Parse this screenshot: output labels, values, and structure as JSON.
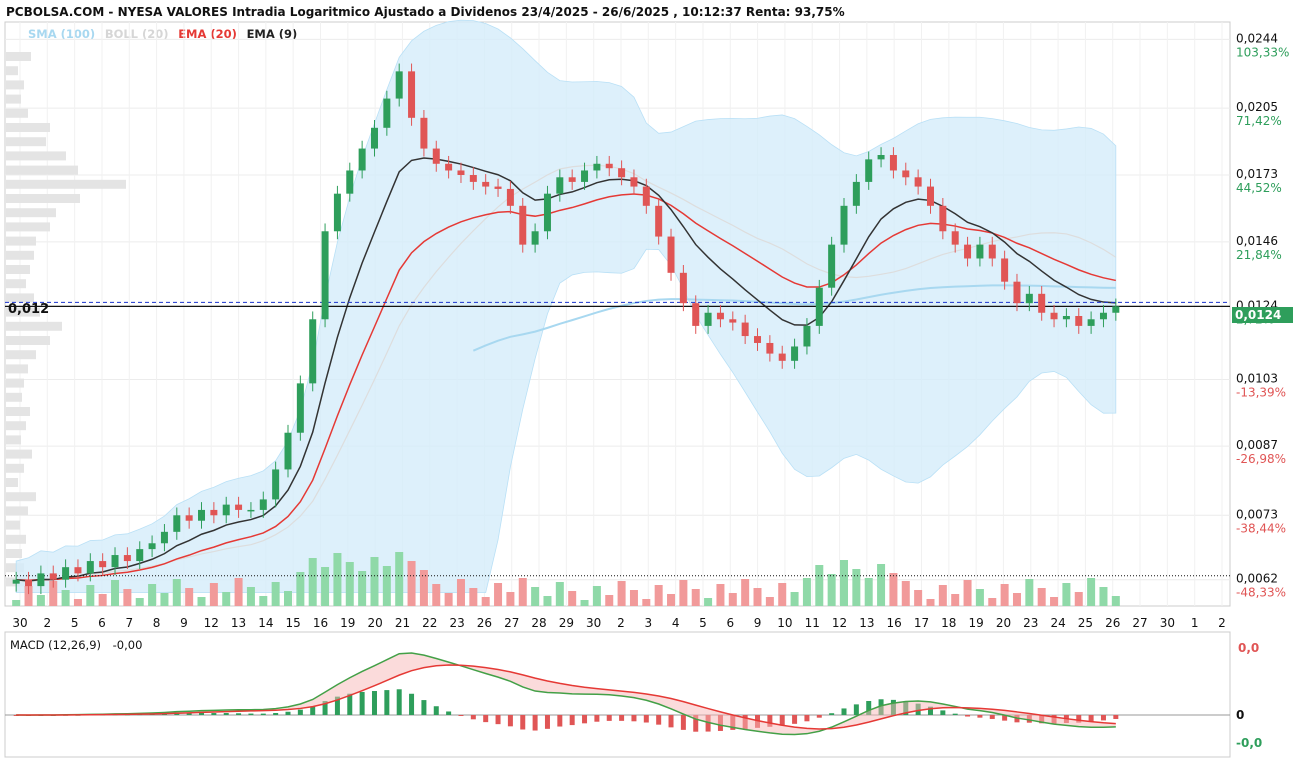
{
  "header": {
    "title": "PCBOLSA.COM - NYESA VALORES Intradia Logaritmico Ajustado a Dividenos 23/4/2025 - 26/6/2025 , 10:12:37 Renta: 93,75%"
  },
  "legend": [
    {
      "label": "SMA (100)",
      "color": "#a8d8f0"
    },
    {
      "label": "BOLL (20)",
      "color": "#d6d6d6"
    },
    {
      "label": "EMA (20)",
      "color": "#e53935"
    },
    {
      "label": "EMA (9)",
      "color": "#222222"
    }
  ],
  "macd": {
    "label": "MACD (12,26,9)",
    "value": "-0,00",
    "axis_labels": [
      "0,0",
      "0",
      "-0,0"
    ]
  },
  "last_price_label": "0,0124",
  "crosshair_label": "0,012",
  "colors": {
    "up": "#2e9e5b",
    "down": "#e05555",
    "boll_fill": "#d4ecfa",
    "sma": "#a8d8f0",
    "ema20": "#e53935",
    "ema9": "#333333"
  },
  "chart_data": {
    "type": "candlestick",
    "title": "PCBOLSA.COM - NYESA VALORES Intradia Logaritmico Ajustado a Dividenos 23/4/2025 - 26/6/2025 , 10:12:37 Renta: 93,75%",
    "y_scale": "log",
    "ylim": [
      0.0058,
      0.0255
    ],
    "y_ticks": [
      {
        "price": "0,0244",
        "pct": "103,33%"
      },
      {
        "price": "0,0205",
        "pct": "71,42%"
      },
      {
        "price": "0,0173",
        "pct": "44,52%"
      },
      {
        "price": "0,0146",
        "pct": "21,84%"
      },
      {
        "price": "0,0124",
        "pct": "2,72%"
      },
      {
        "price": "0,0103",
        "pct": "-13,39%"
      },
      {
        "price": "0,0087",
        "pct": "-26,98%"
      },
      {
        "price": "0,0073",
        "pct": "-38,44%"
      },
      {
        "price": "0,0062",
        "pct": "-48,33%"
      }
    ],
    "x_labels": [
      "30",
      "2",
      "5",
      "6",
      "7",
      "8",
      "9",
      "12",
      "13",
      "14",
      "15",
      "16",
      "19",
      "20",
      "21",
      "22",
      "23",
      "26",
      "27",
      "28",
      "29",
      "30",
      "2",
      "3",
      "4",
      "5",
      "6",
      "9",
      "10",
      "11",
      "12",
      "13",
      "16",
      "17",
      "18",
      "19",
      "20",
      "23",
      "24",
      "25",
      "26",
      "27",
      "30",
      "1",
      "2"
    ],
    "close_series": [
      0.0062,
      0.0061,
      0.0063,
      0.0062,
      0.0064,
      0.0063,
      0.0065,
      0.0064,
      0.0066,
      0.0065,
      0.0067,
      0.0068,
      0.007,
      0.0073,
      0.0072,
      0.0074,
      0.0073,
      0.0075,
      0.0074,
      0.0074,
      0.0076,
      0.0082,
      0.009,
      0.0102,
      0.012,
      0.015,
      0.0165,
      0.0175,
      0.0185,
      0.0195,
      0.021,
      0.0225,
      0.02,
      0.0185,
      0.0178,
      0.0175,
      0.0173,
      0.017,
      0.0168,
      0.0167,
      0.016,
      0.0145,
      0.015,
      0.0165,
      0.0172,
      0.017,
      0.0175,
      0.0178,
      0.0176,
      0.0172,
      0.0168,
      0.016,
      0.0148,
      0.0135,
      0.0125,
      0.0118,
      0.0122,
      0.012,
      0.0119,
      0.0115,
      0.0113,
      0.011,
      0.0108,
      0.0112,
      0.0118,
      0.013,
      0.0145,
      0.016,
      0.017,
      0.018,
      0.0182,
      0.0175,
      0.0172,
      0.0168,
      0.016,
      0.015,
      0.0145,
      0.014,
      0.0145,
      0.014,
      0.0132,
      0.0125,
      0.0128,
      0.0122,
      0.012,
      0.0121,
      0.0118,
      0.012,
      0.0122,
      0.0124
    ]
  }
}
